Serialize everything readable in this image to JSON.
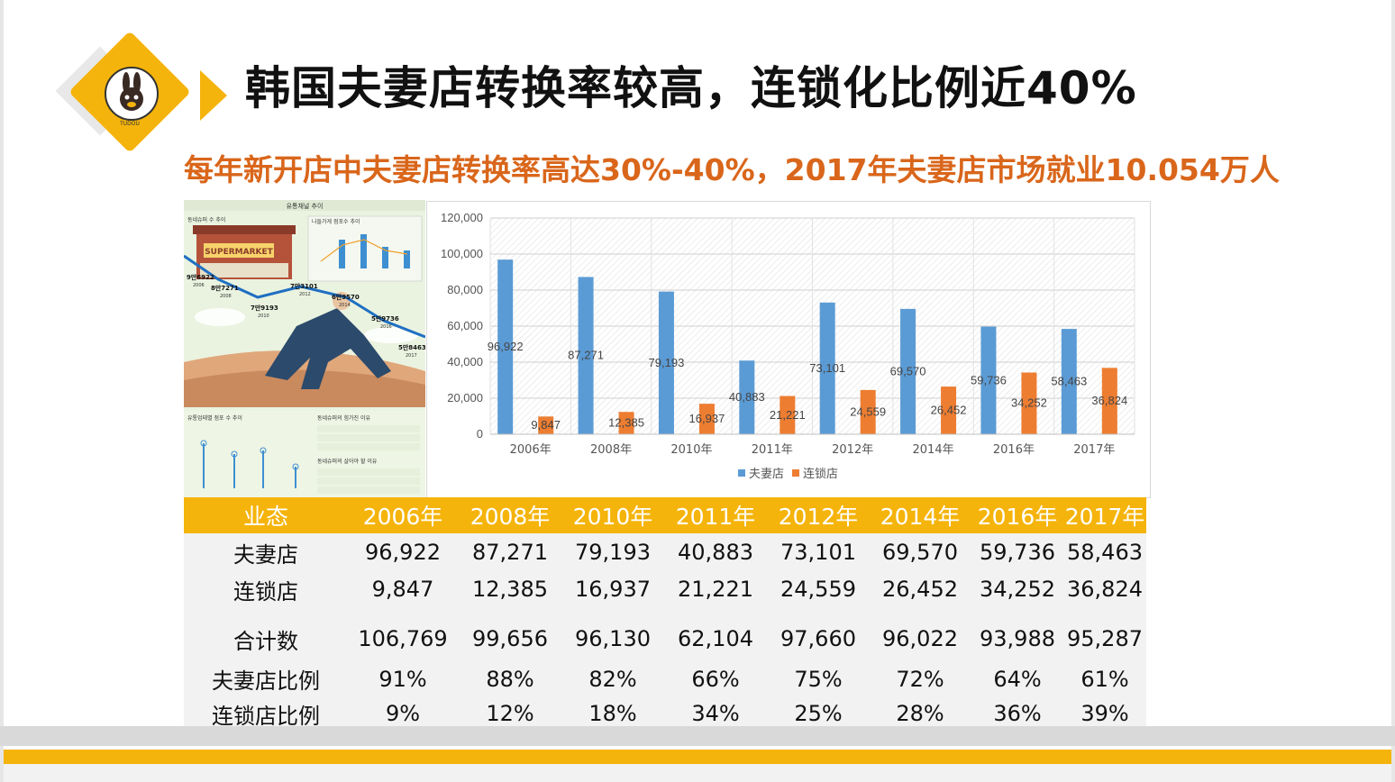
{
  "title": "韩国夫妻店转换率较高，连锁化比例近40%",
  "subtitle": "每年新开店中夫妻店转换率高达30%-40%，2017年夫妻店市场就业10.054万人",
  "logo": {
    "icon": "rabbit-mascot-icon",
    "text": "TUDOU"
  },
  "infographic": {
    "header": "유통채널 추이",
    "store_sign": "SUPERMARKET",
    "section1": "동네슈퍼 수 추이",
    "section2": "나들가게 점포수 추이",
    "section3": "유통업태별 점포 수 추이",
    "section4": "동네슈퍼의 힘가진 이유",
    "section5": "동네슈퍼의 살아야 할 이유",
    "points": [
      {
        "label": "9만6922",
        "year": "2006"
      },
      {
        "label": "8만7271",
        "year": "2008"
      },
      {
        "label": "7만9193",
        "year": "2010"
      },
      {
        "label": "7만3101",
        "year": "2012"
      },
      {
        "label": "6만9570",
        "year": "2014"
      },
      {
        "label": "5만9736",
        "year": "2016"
      },
      {
        "label": "5만8463",
        "year": "2017"
      }
    ]
  },
  "colors": {
    "accent": "#f5b40b",
    "subtitle": "#d9661b",
    "series1": "#5b9bd5",
    "series2": "#ed7d31"
  },
  "chart_data": {
    "type": "bar",
    "categories": [
      "2006年",
      "2008年",
      "2010年",
      "2011年",
      "2012年",
      "2014年",
      "2016年",
      "2017年"
    ],
    "series": [
      {
        "name": "夫妻店",
        "values": [
          96922,
          87271,
          79193,
          40883,
          73101,
          69570,
          59736,
          58463
        ]
      },
      {
        "name": "连锁店",
        "values": [
          9847,
          12385,
          16937,
          21221,
          24559,
          26452,
          34252,
          36824
        ]
      }
    ],
    "data_labels": {
      "夫妻店": [
        "96,922",
        "87,271",
        "79,193",
        "40,883",
        "73,101",
        "69,570",
        "59,736",
        "58,463"
      ],
      "连锁店": [
        "9,847",
        "12,385",
        "16,937",
        "21,221",
        "24,559",
        "26,452",
        "34,252",
        "36,824"
      ]
    },
    "y_ticks": [
      "0",
      "20,000",
      "40,000",
      "60,000",
      "80,000",
      "100,000",
      "120,000"
    ],
    "ylim": [
      0,
      120000
    ],
    "grid": true,
    "legend_position": "bottom"
  },
  "table": {
    "headers": [
      "业态",
      "2006年",
      "2008年",
      "2010年",
      "2011年",
      "2012年",
      "2014年",
      "2016年",
      "2017年"
    ],
    "rows": [
      [
        "夫妻店",
        "96,922",
        "87,271",
        "79,193",
        "40,883",
        "73,101",
        "69,570",
        "59,736",
        "58,463"
      ],
      [
        "连锁店",
        "9,847",
        "12,385",
        "16,937",
        "21,221",
        "24,559",
        "26,452",
        "34,252",
        "36,824"
      ],
      [
        "合计数",
        "106,769",
        "99,656",
        "96,130",
        "62,104",
        "97,660",
        "96,022",
        "93,988",
        "95,287"
      ],
      [
        "夫妻店比例",
        "91%",
        "88%",
        "82%",
        "66%",
        "75%",
        "72%",
        "64%",
        "61%"
      ],
      [
        "连锁店比例",
        "9%",
        "12%",
        "18%",
        "34%",
        "25%",
        "28%",
        "36%",
        "39%"
      ]
    ]
  }
}
